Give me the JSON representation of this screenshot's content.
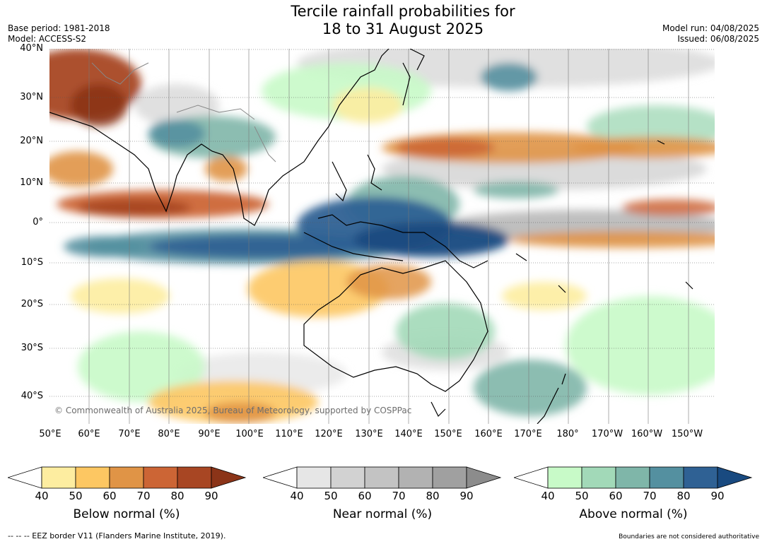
{
  "title": {
    "line1": "Tercile rainfall probabilities for",
    "line2": "18 to 31 August 2025"
  },
  "meta": {
    "base_period": "Base period: 1981-2018",
    "model": "Model: ACCESS-S2",
    "model_run": "Model run: 04/08/2025",
    "issued": "Issued: 06/08/2025"
  },
  "map": {
    "lat_labels": [
      "40°N",
      "30°N",
      "20°N",
      "10°N",
      "0°",
      "10°S",
      "20°S",
      "30°S",
      "40°S"
    ],
    "lon_labels": [
      "50°E",
      "60°E",
      "70°E",
      "80°E",
      "90°E",
      "100°E",
      "110°E",
      "120°E",
      "130°E",
      "140°E",
      "150°E",
      "160°E",
      "170°E",
      "180°",
      "170°W",
      "160°W",
      "150°W"
    ],
    "copyright": "© Commonwealth of Australia 2025, Bureau of Meteorology, supported by COSPPac"
  },
  "legends": [
    {
      "title": "Below normal (%)",
      "ticks": [
        "40",
        "50",
        "60",
        "70",
        "80",
        "90"
      ],
      "colors": [
        "#fdeda0",
        "#fdc762",
        "#e09446",
        "#cc6535",
        "#a84623"
      ],
      "extend_color": "#8b3418"
    },
    {
      "title": "Near normal (%)",
      "ticks": [
        "40",
        "50",
        "60",
        "70",
        "80",
        "90"
      ],
      "colors": [
        "#e6e6e6",
        "#d2d2d2",
        "#c3c3c3",
        "#b2b2b2",
        "#a0a0a0"
      ],
      "extend_color": "#8c8c8c"
    },
    {
      "title": "Above normal (%)",
      "ticks": [
        "40",
        "50",
        "60",
        "70",
        "80",
        "90"
      ],
      "colors": [
        "#c8fac8",
        "#a2d9b8",
        "#7fb6a9",
        "#5490a0",
        "#2f6194"
      ],
      "extend_color": "#194a80"
    }
  ],
  "footer": {
    "left": "--  --  -- EEZ border V11 (Flanders Marine Institute, 2019).",
    "right": "Boundaries are not considered authoritative"
  }
}
